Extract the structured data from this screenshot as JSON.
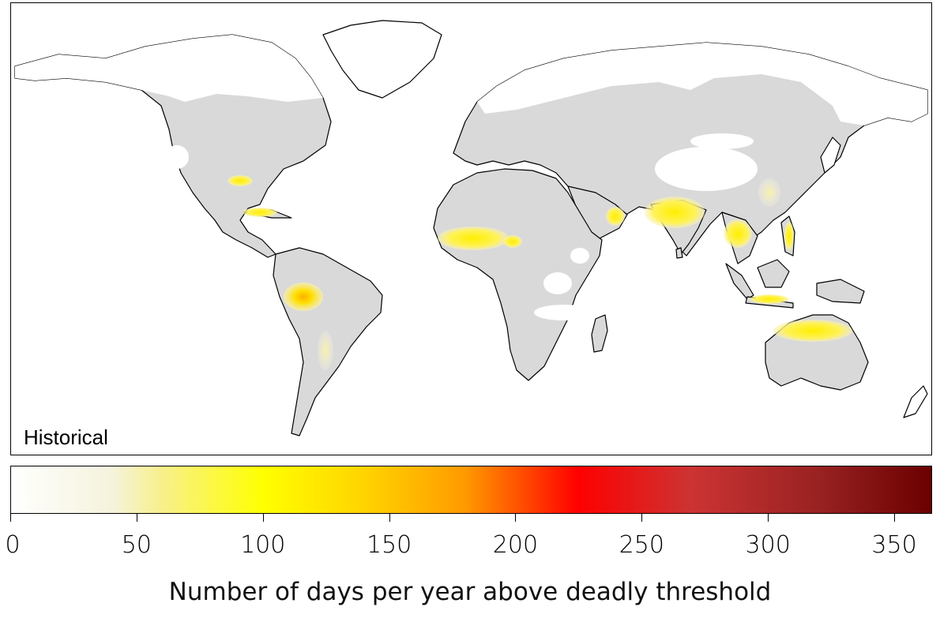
{
  "map": {
    "panel_label": "Historical",
    "land_color": "#d9d9d9",
    "coast_color": "#000000"
  },
  "colorbar": {
    "min": 0,
    "max": 365,
    "stops": [
      {
        "value": 0,
        "color": "#ffffff"
      },
      {
        "value": 40,
        "color": "#f5f3dc"
      },
      {
        "value": 60,
        "color": "#f8f08a"
      },
      {
        "value": 100,
        "color": "#ffff00"
      },
      {
        "value": 140,
        "color": "#ffd400"
      },
      {
        "value": 180,
        "color": "#ff9a00"
      },
      {
        "value": 225,
        "color": "#ff0000"
      },
      {
        "value": 270,
        "color": "#cc3333"
      },
      {
        "value": 320,
        "color": "#992222"
      },
      {
        "value": 365,
        "color": "#6b0000"
      }
    ],
    "ticks": [
      "0",
      "50",
      "100",
      "150",
      "200",
      "250",
      "300",
      "350"
    ],
    "tick_values": [
      0,
      50,
      100,
      150,
      200,
      250,
      300,
      350
    ],
    "title": "Number of days per year above deadly threshold"
  }
}
